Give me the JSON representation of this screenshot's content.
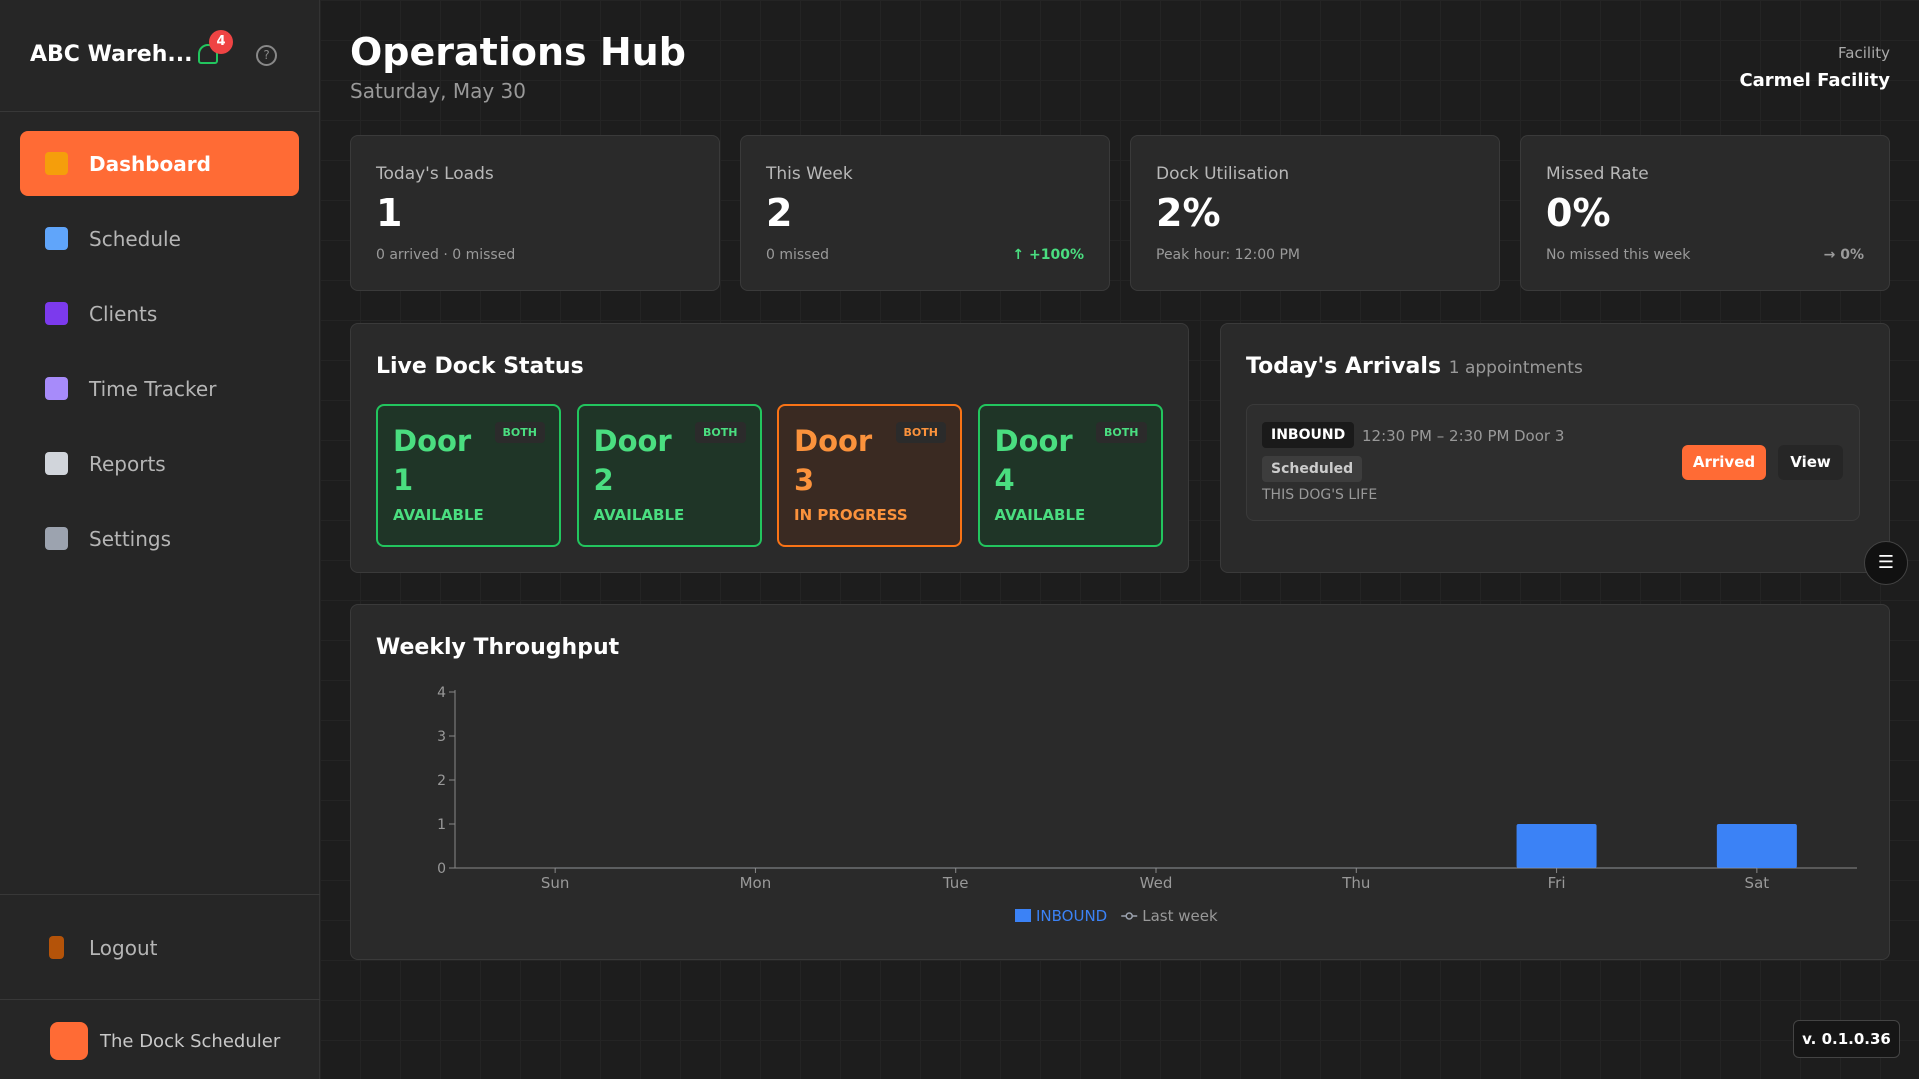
{
  "sidebar": {
    "brand": "ABC Wareh...",
    "badge": "4",
    "nav": [
      "Dashboard",
      "Schedule",
      "Clients",
      "Time Tracker",
      "Reports",
      "Settings"
    ],
    "logout": "Logout",
    "footer": "The Dock Scheduler"
  },
  "header": {
    "title": "Operations Hub",
    "date": "Saturday, May 30",
    "facility_label": "Facility",
    "facility": "Carmel Facility"
  },
  "stats": [
    {
      "label": "Today's Loads",
      "value": "1",
      "sub": "0 arrived · 0 missed"
    },
    {
      "label": "This Week",
      "value": "2",
      "sub": "0 missed",
      "trend": "↑ +100%"
    },
    {
      "label": "Dock Utilisation",
      "value": "2%",
      "sub": "Peak hour: 12:00 PM"
    },
    {
      "label": "Missed Rate",
      "value": "0%",
      "sub": "No missed this week",
      "trend": "→ 0%"
    }
  ],
  "dock": {
    "title": "Live Dock Status",
    "doors": [
      {
        "name": "Door 1",
        "tag": "BOTH",
        "status": "AVAILABLE"
      },
      {
        "name": "Door 2",
        "tag": "BOTH",
        "status": "AVAILABLE"
      },
      {
        "name": "Door 3",
        "tag": "BOTH",
        "status": "IN PROGRESS"
      },
      {
        "name": "Door 4",
        "tag": "BOTH",
        "status": "AVAILABLE"
      }
    ]
  },
  "arrivals": {
    "title": "Today's Arrivals",
    "count": "1 appointments",
    "items": [
      {
        "direction": "INBOUND",
        "time": "12:30 PM – 2:30 PM",
        "door": "Door 3",
        "status": "Scheduled",
        "client": "THIS DOG'S LIFE",
        "action": "Arrived",
        "view": "View"
      }
    ]
  },
  "chart_data": {
    "type": "bar",
    "title": "Weekly Throughput",
    "categories": [
      "Sun",
      "Mon",
      "Tue",
      "Wed",
      "Thu",
      "Fri",
      "Sat"
    ],
    "series": [
      {
        "name": "INBOUND",
        "color": "#3b82f6",
        "values": [
          0,
          0,
          0,
          0,
          0,
          1,
          1
        ]
      },
      {
        "name": "Last week",
        "color": "#9ca3af",
        "type": "line",
        "values": [
          0,
          0,
          0,
          0,
          0,
          0,
          0
        ]
      }
    ],
    "ylim": [
      0,
      4
    ],
    "yticks": [
      0,
      1,
      2,
      3,
      4
    ],
    "grid": false,
    "legend": "bottom"
  },
  "version": "v. 0.1.0.36"
}
